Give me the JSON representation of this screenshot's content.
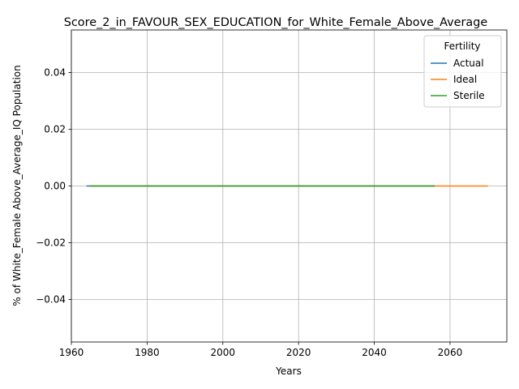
{
  "chart_data": {
    "type": "line",
    "title": "Score_2_in_FAVOUR_SEX_EDUCATION_for_White_Female_Above_Average",
    "xlabel": "Years",
    "ylabel": "% of White_Female Above_Average_IQ Population",
    "xlim": [
      1960,
      2075
    ],
    "ylim": [
      -0.055,
      0.055
    ],
    "x_ticks": [
      1960,
      1980,
      2000,
      2020,
      2040,
      2060
    ],
    "y_ticks": [
      -0.04,
      -0.02,
      0.0,
      0.02,
      0.04
    ],
    "y_tick_labels": [
      "−0.04",
      "−0.02",
      "0.00",
      "0.02",
      "0.04"
    ],
    "grid": true,
    "legend": {
      "title": "Fertility",
      "position": "top-right"
    },
    "series": [
      {
        "name": "Actual",
        "color": "#1f77b4",
        "x": [
          1964,
          2056
        ],
        "values": [
          0,
          0
        ]
      },
      {
        "name": "Ideal",
        "color": "#ff7f0e",
        "x": [
          1965,
          2070
        ],
        "values": [
          0,
          0
        ]
      },
      {
        "name": "Sterile",
        "color": "#2ca02c",
        "x": [
          1965,
          2056
        ],
        "values": [
          0,
          0
        ]
      }
    ]
  }
}
